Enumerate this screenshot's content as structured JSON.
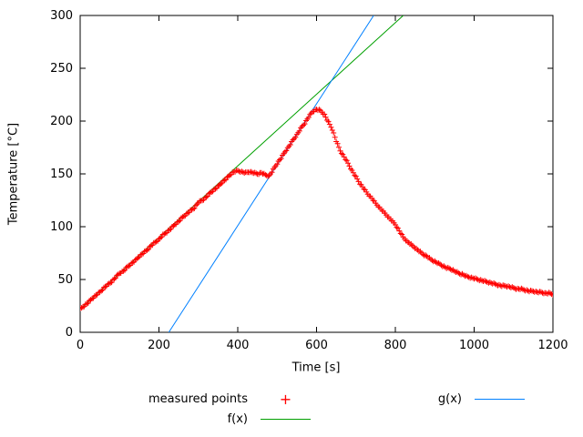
{
  "page": {
    "background": "#ffffff"
  },
  "legend": {
    "position": "below-plot",
    "entries": [
      {
        "label": "measured points",
        "type": "marker",
        "symbol": "+",
        "color": "#ff0000"
      },
      {
        "label": "f(x)",
        "type": "line",
        "color": "#00a000"
      },
      {
        "label": "g(x)",
        "type": "line",
        "color": "#0080ff"
      }
    ]
  },
  "chart_data": {
    "type": "scatter",
    "title": "",
    "xlabel": "Time [s]",
    "ylabel": "Temperature [°C]",
    "xlim": [
      0,
      1200
    ],
    "ylim": [
      0,
      300
    ],
    "xticks": [
      0,
      200,
      400,
      600,
      800,
      1000,
      1200
    ],
    "yticks": [
      0,
      50,
      100,
      150,
      200,
      250,
      300
    ],
    "grid": false,
    "legend_position": "below",
    "series": [
      {
        "name": "measured points",
        "type": "scatter",
        "marker": "+",
        "color": "#ff0000",
        "points": [
          [
            0,
            22
          ],
          [
            10,
            25
          ],
          [
            20,
            28
          ],
          [
            30,
            32
          ],
          [
            40,
            35
          ],
          [
            50,
            38
          ],
          [
            60,
            42
          ],
          [
            70,
            45
          ],
          [
            80,
            48
          ],
          [
            90,
            52
          ],
          [
            100,
            56
          ],
          [
            110,
            58
          ],
          [
            120,
            62
          ],
          [
            130,
            65
          ],
          [
            140,
            68
          ],
          [
            150,
            72
          ],
          [
            160,
            75
          ],
          [
            170,
            78
          ],
          [
            180,
            82
          ],
          [
            190,
            85
          ],
          [
            200,
            88
          ],
          [
            210,
            92
          ],
          [
            220,
            95
          ],
          [
            230,
            98
          ],
          [
            240,
            102
          ],
          [
            250,
            105
          ],
          [
            260,
            109
          ],
          [
            270,
            112
          ],
          [
            280,
            115
          ],
          [
            290,
            118
          ],
          [
            300,
            123
          ],
          [
            310,
            125
          ],
          [
            320,
            128
          ],
          [
            330,
            132
          ],
          [
            340,
            135
          ],
          [
            350,
            138
          ],
          [
            360,
            142
          ],
          [
            370,
            145
          ],
          [
            380,
            149
          ],
          [
            390,
            152
          ],
          [
            400,
            153
          ],
          [
            410,
            152
          ],
          [
            420,
            151
          ],
          [
            430,
            152
          ],
          [
            440,
            151
          ],
          [
            450,
            150
          ],
          [
            460,
            151
          ],
          [
            470,
            149
          ],
          [
            480,
            148
          ],
          [
            490,
            154
          ],
          [
            500,
            160
          ],
          [
            510,
            165
          ],
          [
            520,
            171
          ],
          [
            530,
            176
          ],
          [
            540,
            182
          ],
          [
            550,
            187
          ],
          [
            560,
            193
          ],
          [
            570,
            198
          ],
          [
            580,
            204
          ],
          [
            590,
            209
          ],
          [
            600,
            211
          ],
          [
            610,
            210
          ],
          [
            620,
            206
          ],
          [
            630,
            199
          ],
          [
            640,
            192
          ],
          [
            650,
            181
          ],
          [
            660,
            172
          ],
          [
            670,
            166
          ],
          [
            680,
            160
          ],
          [
            690,
            153
          ],
          [
            700,
            147
          ],
          [
            710,
            141
          ],
          [
            720,
            136
          ],
          [
            730,
            131
          ],
          [
            740,
            127
          ],
          [
            750,
            122
          ],
          [
            760,
            118
          ],
          [
            770,
            114
          ],
          [
            780,
            110
          ],
          [
            790,
            106
          ],
          [
            800,
            102
          ],
          [
            810,
            96
          ],
          [
            820,
            90
          ],
          [
            830,
            86
          ],
          [
            840,
            83
          ],
          [
            850,
            80
          ],
          [
            860,
            77
          ],
          [
            870,
            74
          ],
          [
            880,
            72
          ],
          [
            890,
            69
          ],
          [
            900,
            67
          ],
          [
            910,
            65
          ],
          [
            920,
            63
          ],
          [
            930,
            61
          ],
          [
            940,
            60
          ],
          [
            950,
            58
          ],
          [
            960,
            56
          ],
          [
            970,
            55
          ],
          [
            980,
            53
          ],
          [
            990,
            52
          ],
          [
            1000,
            51
          ],
          [
            1010,
            50
          ],
          [
            1020,
            49
          ],
          [
            1030,
            48
          ],
          [
            1040,
            47
          ],
          [
            1050,
            46
          ],
          [
            1060,
            45
          ],
          [
            1070,
            44
          ],
          [
            1080,
            44
          ],
          [
            1090,
            43
          ],
          [
            1100,
            42
          ],
          [
            1110,
            41
          ],
          [
            1120,
            41
          ],
          [
            1130,
            40
          ],
          [
            1140,
            39
          ],
          [
            1150,
            39
          ],
          [
            1160,
            38
          ],
          [
            1170,
            38
          ],
          [
            1180,
            37
          ],
          [
            1190,
            37
          ],
          [
            1200,
            36
          ]
        ]
      },
      {
        "name": "f(x)",
        "type": "line",
        "color": "#00a000",
        "points": [
          [
            0,
            22
          ],
          [
            820,
            300
          ]
        ]
      },
      {
        "name": "g(x)",
        "type": "line",
        "color": "#0080ff",
        "points": [
          [
            225,
            0
          ],
          [
            745,
            300
          ]
        ]
      }
    ]
  }
}
